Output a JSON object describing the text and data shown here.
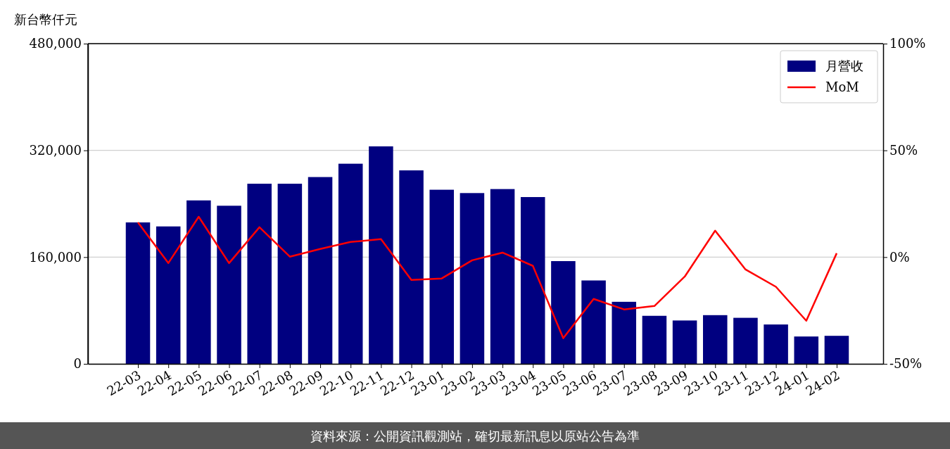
{
  "chart_data": {
    "type": "bar",
    "ylabel": "新台幣仟元",
    "categories": [
      "22-03",
      "22-04",
      "22-05",
      "22-06",
      "22-07",
      "22-08",
      "22-09",
      "22-10",
      "22-11",
      "22-12",
      "23-01",
      "23-02",
      "23-03",
      "23-04",
      "23-05",
      "23-06",
      "23-07",
      "23-08",
      "23-09",
      "23-10",
      "23-11",
      "23-12",
      "24-01",
      "24-02"
    ],
    "series": [
      {
        "name": "月營收",
        "color": "#000080",
        "values": [
          212000,
          206000,
          245000,
          237000,
          270000,
          270000,
          280000,
          300000,
          326000,
          290000,
          261000,
          256000,
          262000,
          250000,
          154000,
          125000,
          93000,
          72000,
          65000,
          73000,
          69000,
          59000,
          41000,
          42000
        ]
      },
      {
        "name": "MoM",
        "type": "line",
        "axis": "y2",
        "color": "#ff0000",
        "values": [
          16.3,
          -2.8,
          18.9,
          -2.8,
          14.0,
          0.2,
          3.8,
          7.1,
          8.4,
          -10.7,
          -10.0,
          -1.5,
          2.1,
          -4.1,
          -38.0,
          -19.6,
          -24.5,
          -22.9,
          -9.1,
          12.4,
          -5.8,
          -13.9,
          -29.8,
          1.8
        ]
      }
    ],
    "ylim": [
      0,
      480000
    ],
    "yticks": [
      {
        "value": 0,
        "label": "0"
      },
      {
        "value": 160000,
        "label": "160,000"
      },
      {
        "value": 320000,
        "label": "320,000"
      },
      {
        "value": 480000,
        "label": "480,000"
      }
    ],
    "y2lim": [
      -50,
      100
    ],
    "y2ticks": [
      {
        "value": -50,
        "label": "-50%"
      },
      {
        "value": 0,
        "label": "0%"
      },
      {
        "value": 50,
        "label": "50%"
      },
      {
        "value": 100,
        "label": "100%"
      }
    ],
    "grid": "y",
    "legend": "top right",
    "line_style": "solid",
    "marker": "none",
    "annotations": [
      "資料來源：公開資訊觀測站，確切最新訊息以原站公告為準"
    ]
  }
}
